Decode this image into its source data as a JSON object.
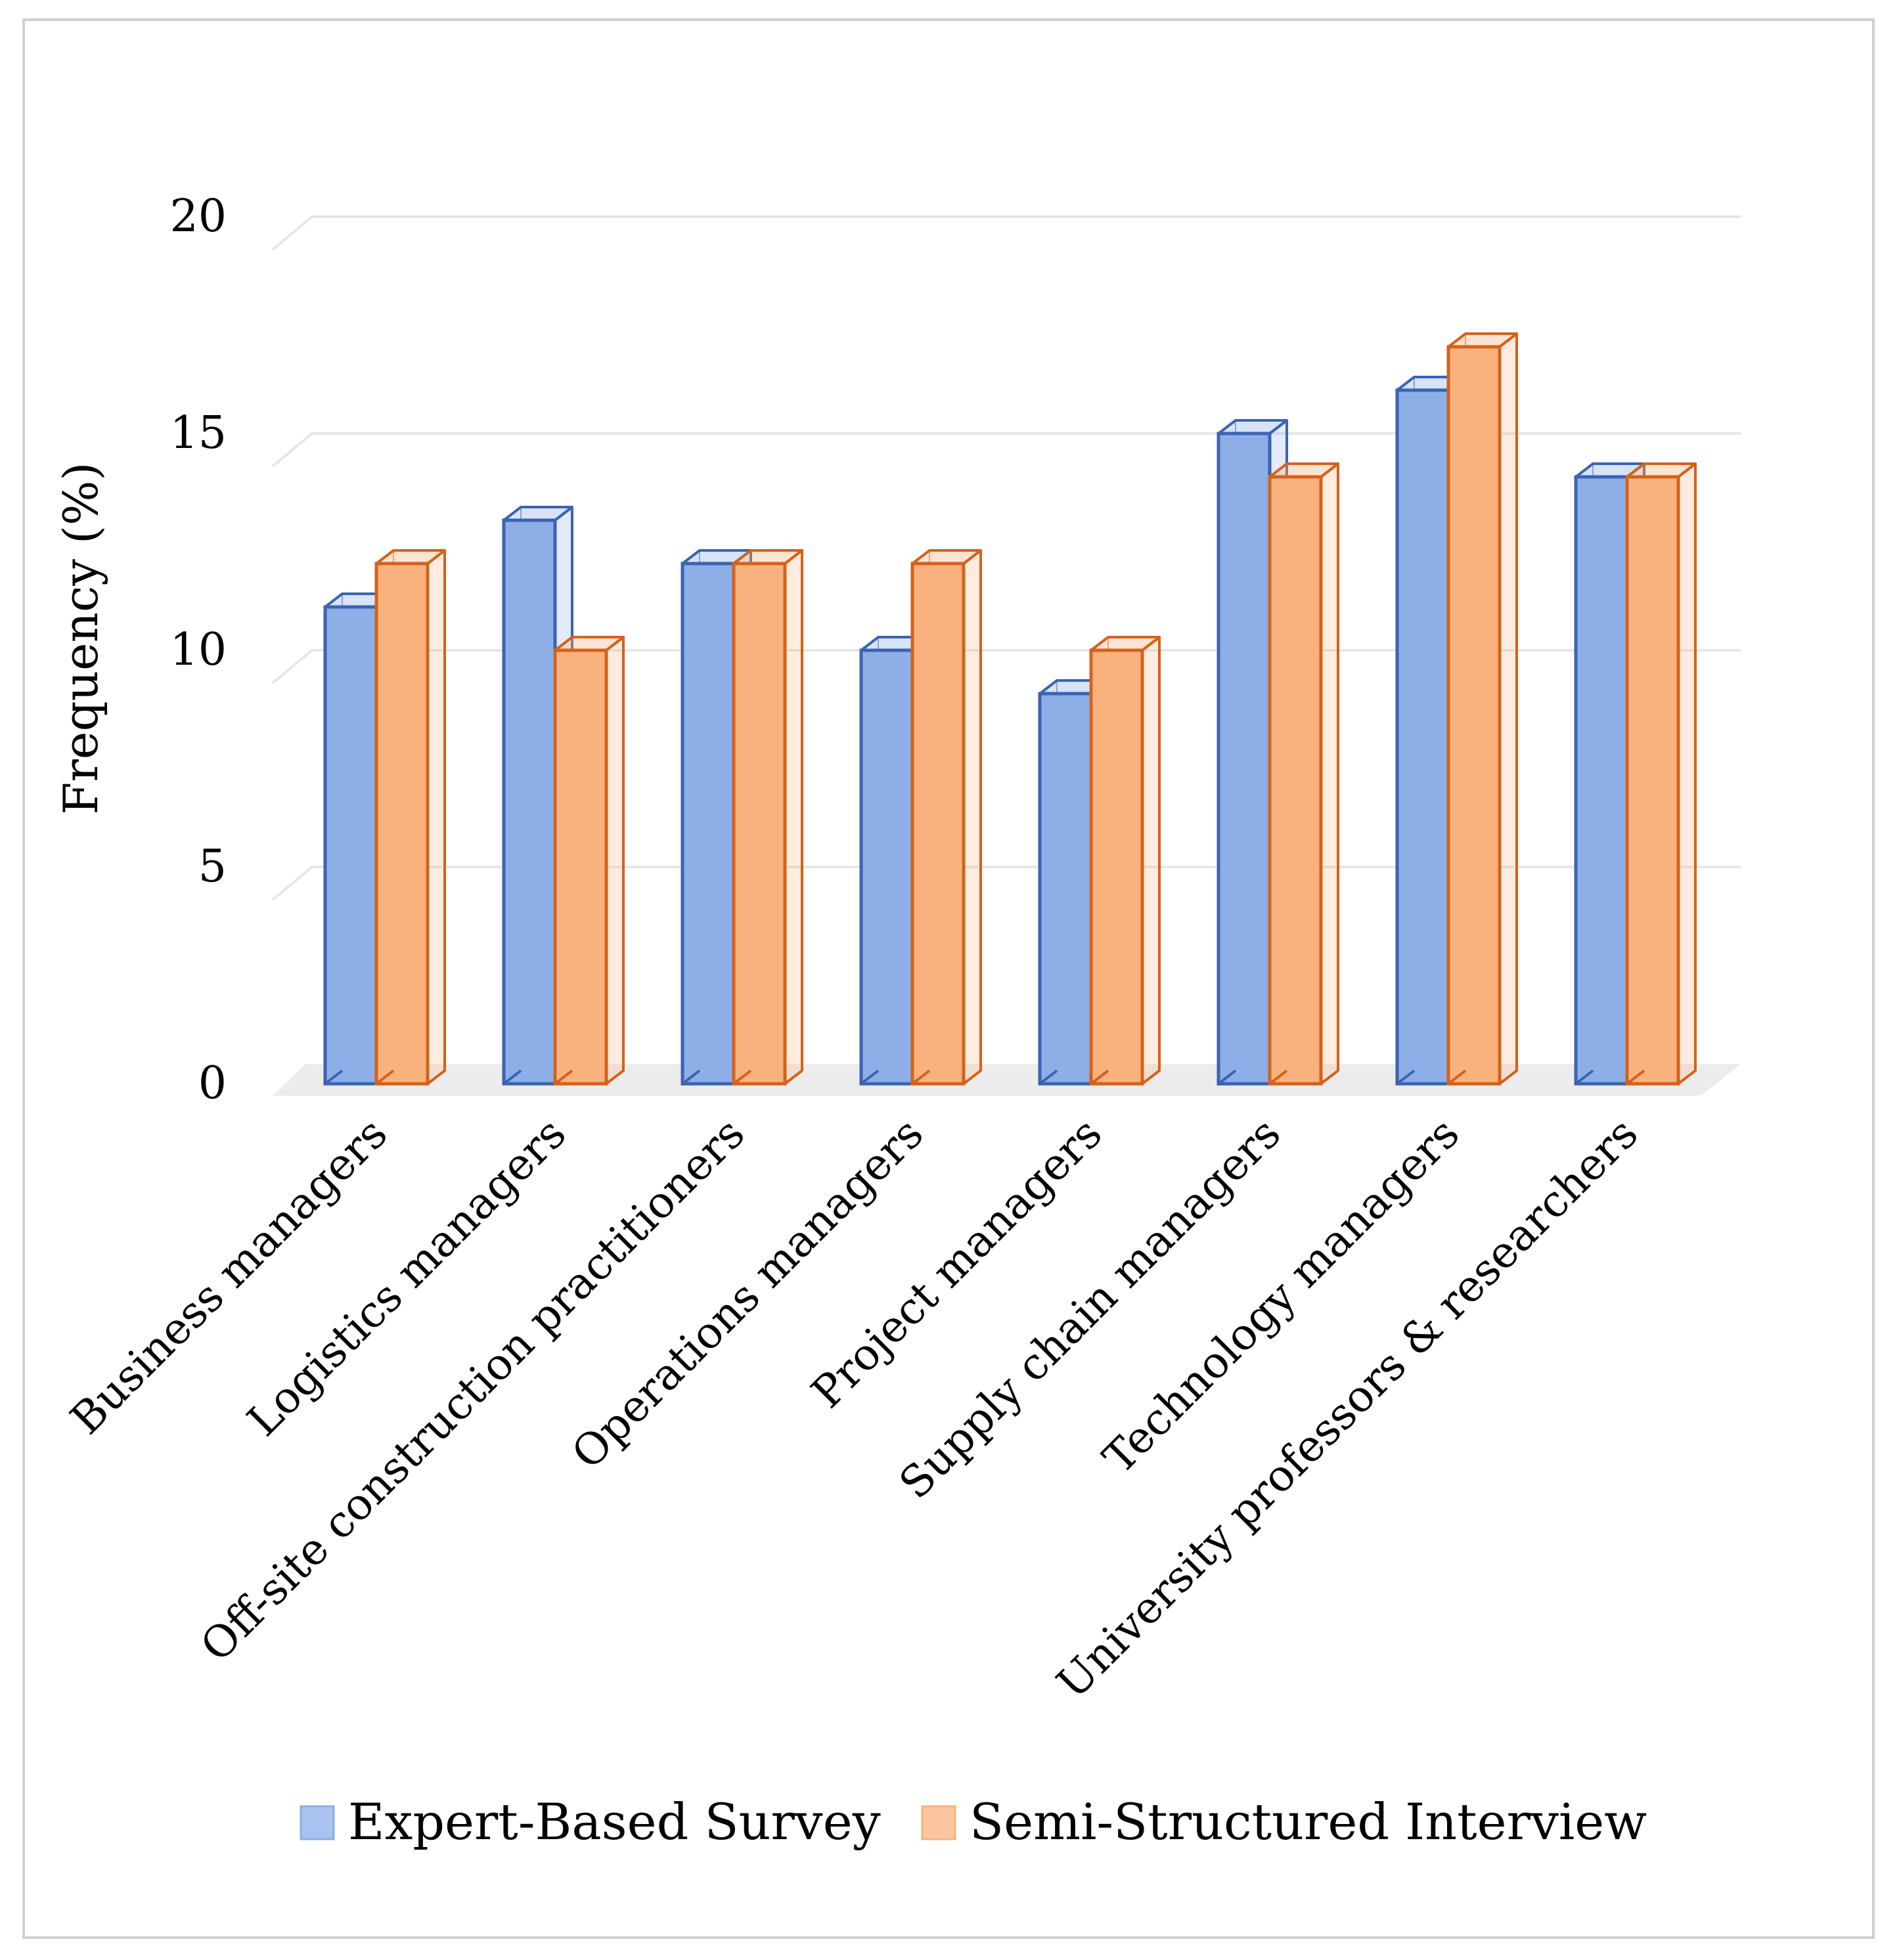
{
  "chart_data": {
    "type": "bar",
    "title": "",
    "xlabel": "",
    "ylabel": "Frequency (%)",
    "ylim": [
      0,
      20
    ],
    "yticks": [
      0,
      5,
      10,
      15,
      20
    ],
    "grid": true,
    "legend_position": "bottom",
    "categories": [
      "Business managers",
      "Logistics managers",
      "Off-site construction practitioners",
      "Operations managers",
      "Project managers",
      "Supply chain managers",
      "Technology managers",
      "University professors & researchers"
    ],
    "series": [
      {
        "name": "Expert-Based Survey",
        "values": [
          11,
          13,
          12,
          10,
          9,
          15,
          16,
          14
        ],
        "fill": "#8eaee8",
        "edge": "#3a63b3"
      },
      {
        "name": "Semi-Structured Interview",
        "values": [
          12,
          10,
          12,
          12,
          10,
          14,
          17,
          14
        ],
        "fill": "#f9b27e",
        "edge": "#d4621a"
      }
    ]
  }
}
